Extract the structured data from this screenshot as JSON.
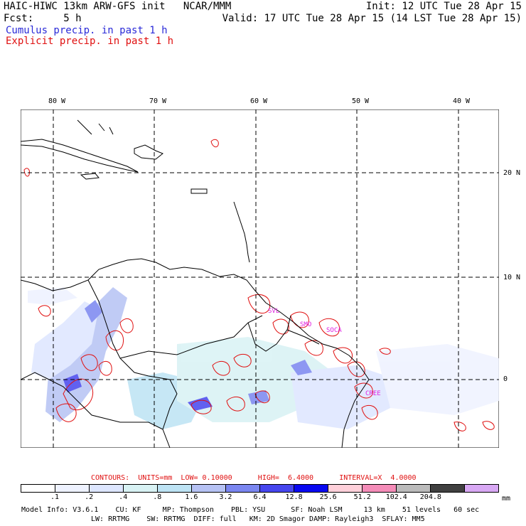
{
  "header": {
    "left_line1": "HAIC-HIWC 13km ARW-GFS init   NCAR/MMM",
    "left_line2": "Fcst:     5 h",
    "right_line1": "Init: 12 UTC Tue 28 Apr 15",
    "right_line2": "Valid: 17 UTC Tue 28 Apr 15 (14 LST Tue 28 Apr 15)",
    "cumulus_label": "Cumulus precip. in past 1 h",
    "explicit_label": "Explicit precip. in past 1 h"
  },
  "map": {
    "lon_labels": [
      "80 W",
      "70 W",
      "60 W",
      "50 W",
      "40 W"
    ],
    "lat_labels": [
      "20 N",
      "10 N",
      "0"
    ],
    "station_labels": [
      "SVL",
      "SMO",
      "SOCA",
      "CREE"
    ],
    "colors": {
      "coast": "#000000",
      "grid": "#000000",
      "cumulus": "#5a6cf0",
      "explicit": "#e01010",
      "station": "#e020e0"
    }
  },
  "contour_info": "CONTOURS:  UNITS=mm  LOW= 0.10000      HIGH=  6.4000      INTERVAL=X  4.0000",
  "colorbar": {
    "ticks": [
      ".1",
      ".2",
      ".4",
      ".8",
      "1.6",
      "3.2",
      "6.4",
      "12.8",
      "25.6",
      "51.2",
      "102.4",
      "204.8"
    ],
    "colors": [
      "#ffffff",
      "#eef2ff",
      "#dde6ff",
      "#d8f2f4",
      "#bde3f4",
      "#b6c2f4",
      "#7a86f0",
      "#4646ee",
      "#0808f0",
      "#ffd0da",
      "#f48cb8",
      "#bbbbbb",
      "#404040",
      "#d8a8f4"
    ],
    "unit": "mm"
  },
  "footer": {
    "line1": "Model Info: V3.6.1    CU: KF     MP: Thompson    PBL: YSU      SF: Noah LSM     13 km    51 levels   60 sec",
    "line2": "LW: RRTMG    SW: RRTMG  DIFF: full   KM: 2D Smagor DAMP: Rayleigh3  SFLAY: MM5"
  }
}
